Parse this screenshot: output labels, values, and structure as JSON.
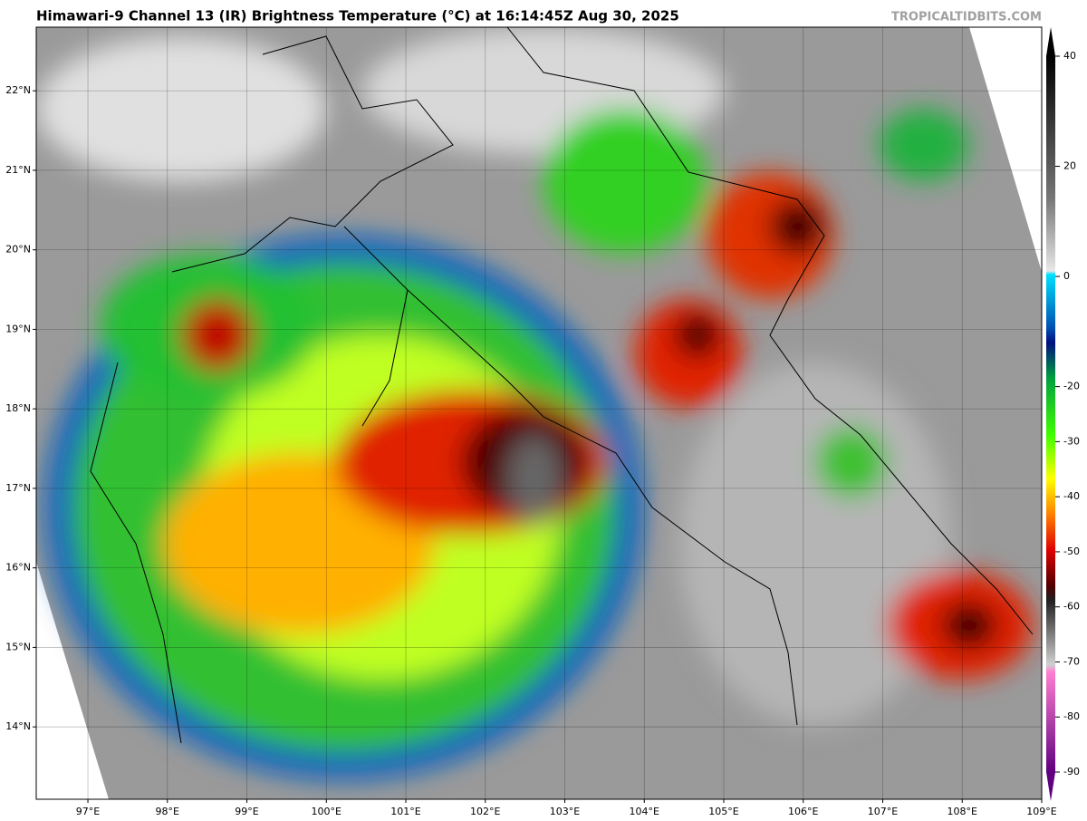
{
  "title": "Himawari-9 Channel 13 (IR) Brightness Temperature (°C) at 16:14:45Z Aug 30, 2025",
  "source": "TROPICALTIDBITS.COM",
  "map": {
    "xlim": [
      96.35,
      109
    ],
    "ylim": [
      13.09,
      22.8
    ],
    "xticks": [
      {
        "value": 97,
        "label": "97°E"
      },
      {
        "value": 98,
        "label": "98°E"
      },
      {
        "value": 99,
        "label": "99°E"
      },
      {
        "value": 100,
        "label": "100°E"
      },
      {
        "value": 101,
        "label": "101°E"
      },
      {
        "value": 102,
        "label": "102°E"
      },
      {
        "value": 103,
        "label": "103°E"
      },
      {
        "value": 104,
        "label": "104°E"
      },
      {
        "value": 105,
        "label": "105°E"
      },
      {
        "value": 106,
        "label": "106°E"
      },
      {
        "value": 107,
        "label": "107°E"
      },
      {
        "value": 108,
        "label": "108°E"
      },
      {
        "value": 109,
        "label": "109°E"
      }
    ],
    "yticks": [
      {
        "value": 14,
        "label": "14°N"
      },
      {
        "value": 15,
        "label": "15°N"
      },
      {
        "value": 16,
        "label": "16°N"
      },
      {
        "value": 17,
        "label": "17°N"
      },
      {
        "value": 18,
        "label": "18°N"
      },
      {
        "value": 19,
        "label": "19°N"
      },
      {
        "value": 20,
        "label": "20°N"
      },
      {
        "value": 21,
        "label": "21°N"
      },
      {
        "value": 22,
        "label": "22°N"
      }
    ]
  },
  "colorbar": {
    "ticks": [
      40,
      20,
      0,
      -20,
      -30,
      -40,
      -50,
      -60,
      -70,
      -80,
      -90
    ]
  }
}
